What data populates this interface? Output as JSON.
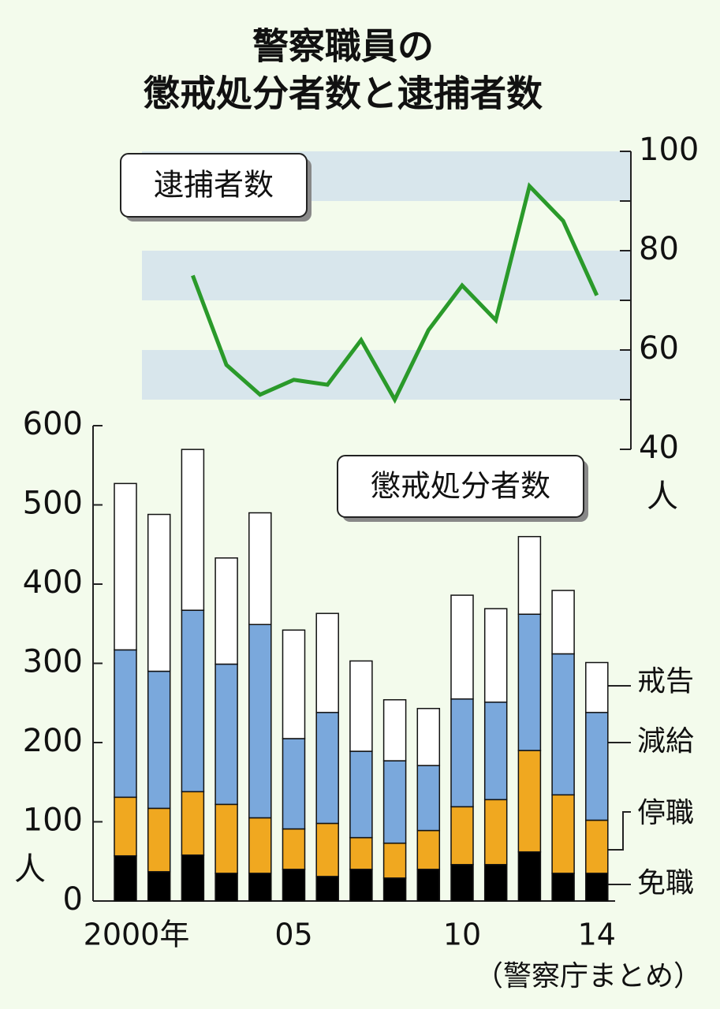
{
  "chart_data": [
    {
      "type": "bar",
      "stacked": true,
      "title": [
        "警察職員の",
        "懲戒処分者数と逮捕者数"
      ],
      "label": "懲戒処分者数",
      "y_unit": "人",
      "source": "（警察庁まとめ）",
      "categories": [
        "2000年",
        null,
        null,
        null,
        null,
        "05",
        null,
        null,
        null,
        null,
        "10",
        null,
        null,
        null,
        "14"
      ],
      "series": [
        {
          "name": "免職",
          "color": "#000000",
          "values": [
            57,
            37,
            58,
            35,
            35,
            40,
            31,
            40,
            29,
            40,
            46,
            46,
            62,
            35,
            35
          ]
        },
        {
          "name": "停職",
          "color": "#f0a820",
          "values": [
            74,
            80,
            80,
            87,
            70,
            51,
            67,
            40,
            44,
            49,
            73,
            82,
            128,
            99,
            67
          ]
        },
        {
          "name": "減給",
          "color": "#7aa8dc",
          "values": [
            186,
            173,
            229,
            177,
            244,
            114,
            140,
            109,
            104,
            82,
            136,
            123,
            172,
            178,
            136
          ]
        },
        {
          "name": "戒告",
          "color": "#ffffff",
          "values": [
            210,
            198,
            203,
            134,
            141,
            137,
            125,
            114,
            77,
            72,
            131,
            118,
            98,
            80,
            63
          ]
        }
      ],
      "ylim": [
        0,
        600
      ],
      "yticks": [
        0,
        100,
        200,
        300,
        400,
        500,
        600
      ]
    },
    {
      "type": "line",
      "label": "逮捕者数",
      "y_unit": "人",
      "color": "#2a9a2a",
      "values": [
        null,
        null,
        75,
        57,
        51,
        54,
        53,
        62,
        50,
        64,
        73,
        66,
        93,
        86,
        71
      ],
      "ylim": [
        40,
        100
      ],
      "yticks": [
        40,
        60,
        80,
        100
      ],
      "minor_yticks": [
        50,
        70,
        90
      ],
      "bands": true
    }
  ]
}
